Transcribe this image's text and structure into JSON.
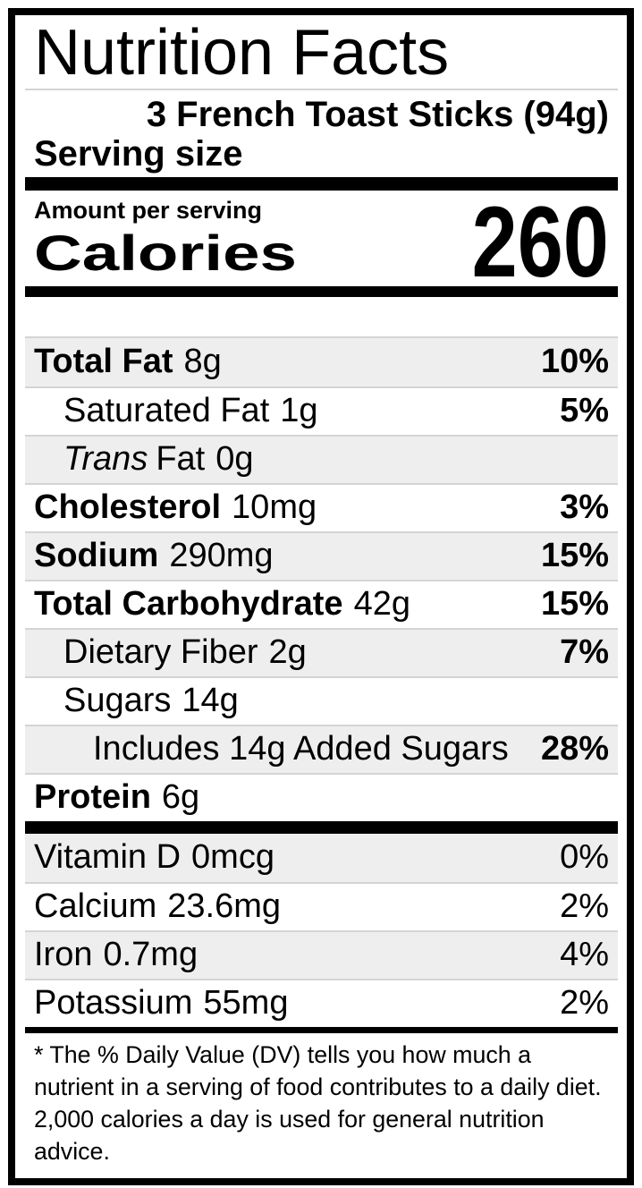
{
  "title": "Nutrition Facts",
  "serving": {
    "label": "Serving size",
    "value": "3 French Toast Sticks (94g)"
  },
  "calories": {
    "amount_label": "Amount per serving",
    "label": "Calories",
    "value": "260"
  },
  "nutrients": [
    {
      "label_italic": "",
      "label": "Total Fat",
      "value": "8g",
      "dv": "10%",
      "indent": 0,
      "strong": true,
      "dv_strong": true
    },
    {
      "label_italic": "",
      "label": "Saturated Fat",
      "value": "1g",
      "dv": "5%",
      "indent": 1,
      "strong": false,
      "dv_strong": true
    },
    {
      "label_italic": "Trans",
      "label": "Fat",
      "value": "0g",
      "dv": "",
      "indent": 1,
      "strong": false,
      "dv_strong": false
    },
    {
      "label_italic": "",
      "label": "Cholesterol",
      "value": "10mg",
      "dv": "3%",
      "indent": 0,
      "strong": true,
      "dv_strong": true
    },
    {
      "label_italic": "",
      "label": "Sodium",
      "value": "290mg",
      "dv": "15%",
      "indent": 0,
      "strong": true,
      "dv_strong": true
    },
    {
      "label_italic": "",
      "label": "Total Carbohydrate",
      "value": "42g",
      "dv": "15%",
      "indent": 0,
      "strong": true,
      "dv_strong": true
    },
    {
      "label_italic": "",
      "label": "Dietary Fiber",
      "value": "2g",
      "dv": "7%",
      "indent": 1,
      "strong": false,
      "dv_strong": true
    },
    {
      "label_italic": "",
      "label": "Sugars",
      "value": "14g",
      "dv": "",
      "indent": 1,
      "strong": false,
      "dv_strong": false
    },
    {
      "label_italic": "",
      "label": "Includes 14g Added Sugars",
      "value": "",
      "dv": "28%",
      "indent": 2,
      "strong": false,
      "dv_strong": true
    },
    {
      "label_italic": "",
      "label": "Protein",
      "value": "6g",
      "dv": "",
      "indent": 0,
      "strong": true,
      "dv_strong": false
    }
  ],
  "vitamins": [
    {
      "label_italic": "",
      "label": "Vitamin D",
      "value": "0mcg",
      "dv": "0%",
      "indent": 0,
      "strong": false,
      "dv_strong": false
    },
    {
      "label_italic": "",
      "label": "Calcium",
      "value": "23.6mg",
      "dv": "2%",
      "indent": 0,
      "strong": false,
      "dv_strong": false
    },
    {
      "label_italic": "",
      "label": "Iron",
      "value": "0.7mg",
      "dv": "4%",
      "indent": 0,
      "strong": false,
      "dv_strong": false
    },
    {
      "label_italic": "",
      "label": "Potassium",
      "value": "55mg",
      "dv": "2%",
      "indent": 0,
      "strong": false,
      "dv_strong": false
    }
  ],
  "footnote": "* The % Daily Value (DV) tells you how much a nutrient in a serving of food contributes to a daily diet. 2,000 calories a day is used for general nutrition advice.",
  "colors": {
    "text": "#000000",
    "bar": "#000000",
    "shaded_row": "#eeeeee",
    "divider": "#d4d4d4",
    "background": "#ffffff"
  }
}
